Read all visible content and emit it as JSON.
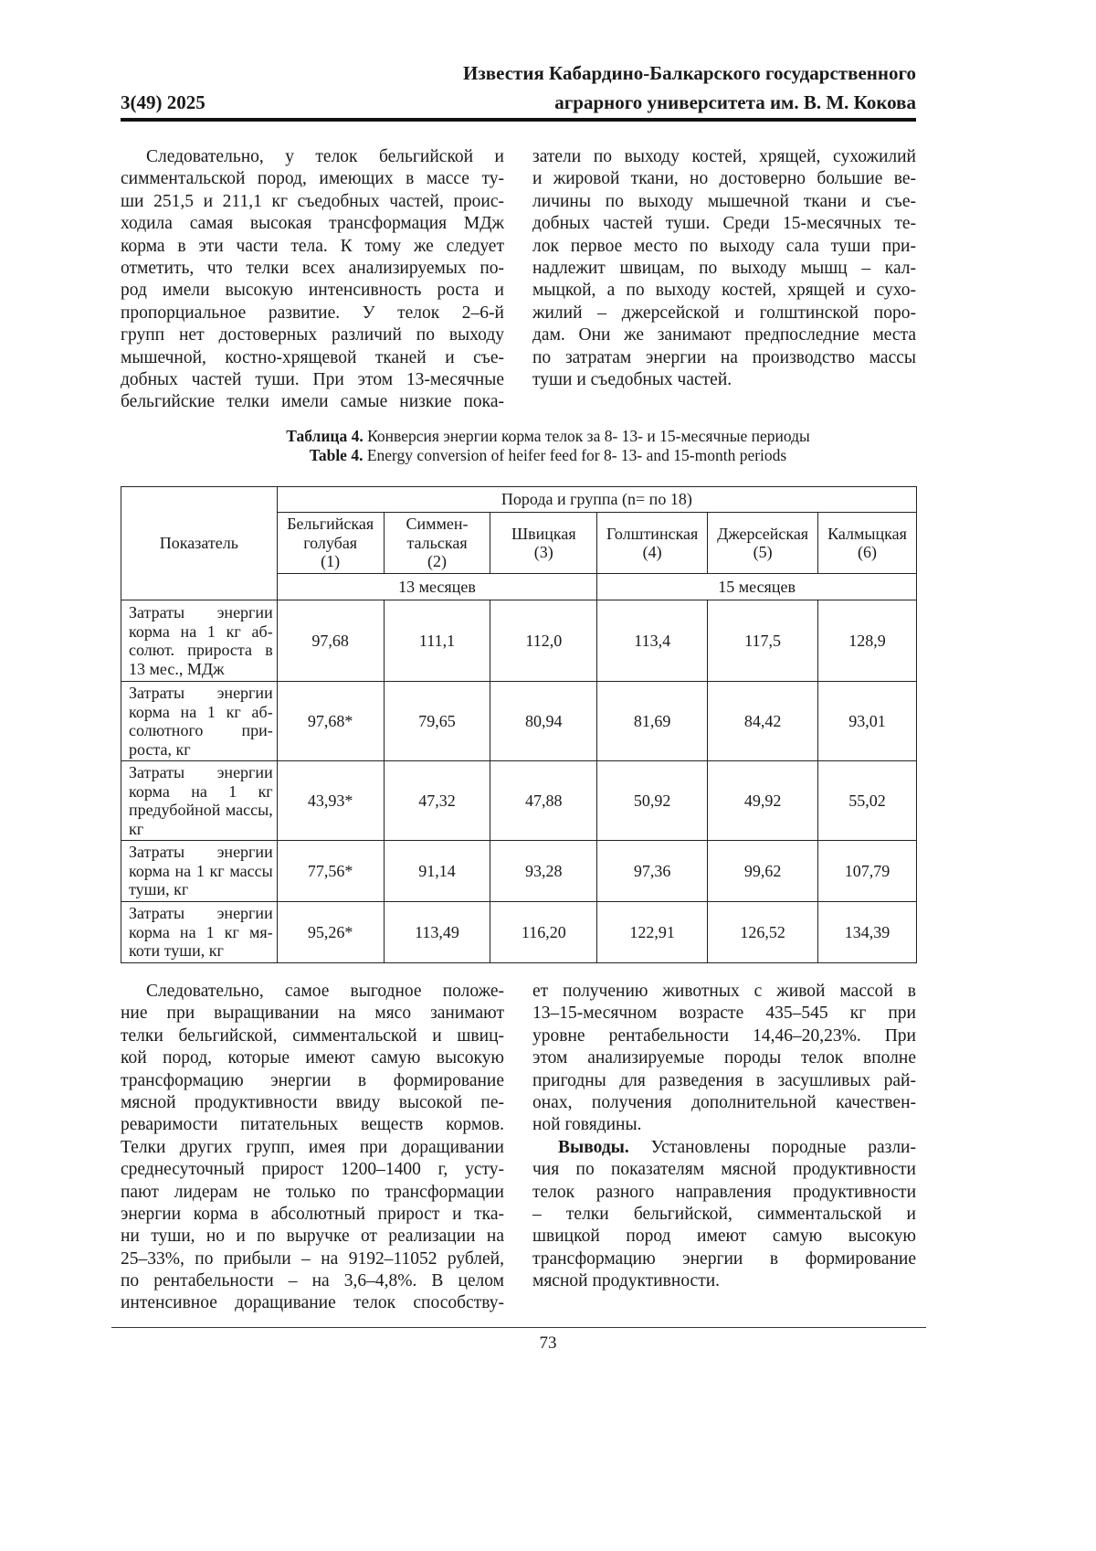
{
  "header": {
    "journal_line1": "Известия Кабардино-Балкарского государственного",
    "journal_line2": "аграрного университета им. В. М. Кокова",
    "issue": "3(49) 2025"
  },
  "top_left": [
    {
      "lines": [
        "Следовательно, у телок бельгийской и",
        "симментальской пород, имеющих в массе ту-",
        "ши 251,5 и 211,1 кг съедобных частей, проис-",
        "ходила самая высокая трансформация МДж",
        "корма в эти части тела. К тому же следует",
        "отметить, что телки всех анализируемых по-",
        "род имели высокую интенсивность роста и",
        "пропорциальное развитие. У телок 2–6-й",
        "групп нет достоверных различий по выходу",
        "мышечной, костно-хрящевой тканей и съе-",
        "добных частей туши. При этом 13-месячные",
        "бельгийские телки имели самые низкие пока-"
      ],
      "ends": false
    }
  ],
  "top_right": [
    {
      "lines": [
        "затели по выходу костей, хрящей, сухожилий",
        "и жировой ткани, но достоверно большие ве-",
        "личины по выходу мышечной ткани и съе-",
        "добных частей туши. Среди 15-месячных те-",
        "лок первое место по выходу сала туши при-",
        "надлежит швицам, по выходу мышц – кал-",
        "мыцкой, а по выходу костей, хрящей и сухо-",
        "жилий – джерсейской и голштинской поро-",
        "дам. Они же занимают предпоследние места",
        "по затратам энергии на производство массы",
        "туши и съедобных частей."
      ],
      "ends": true,
      "cont": true
    }
  ],
  "table": {
    "caption_ru_label": "Таблица 4.",
    "caption_ru": " Конверсия энергии корма телок за 8- 13- и 15-месячные периоды",
    "caption_en_label": "Table 4.",
    "caption_en": " Energy conversion of heifer feed for 8- 13- and 15-month periods",
    "indicator_header": "Показатель",
    "group_header": "Порода и группа (n= по 18)",
    "breeds": [
      [
        "Бельгийская",
        "голубая",
        "(1)"
      ],
      [
        "Симмен-",
        "тальская",
        "(2)"
      ],
      [
        "Швицкая",
        "(3)"
      ],
      [
        "Голштинская",
        "(4)"
      ],
      [
        "Джерсейская",
        "(5)"
      ],
      [
        "Калмыцкая",
        "(6)"
      ]
    ],
    "period_13": "13 месяцев",
    "period_15": "15 месяцев",
    "rows": [
      {
        "label": "Затраты энергии корма на 1 кг аб-солют. прироста в 13 мес., МДж",
        "values": [
          "97,68",
          "111,1",
          "112,0",
          "113,4",
          "117,5",
          "128,9"
        ]
      },
      {
        "label": "Затраты энергии корма на 1 кг аб-солютного при-роста, кг",
        "values": [
          "97,68*",
          "79,65",
          "80,94",
          "81,69",
          "84,42",
          "93,01"
        ]
      },
      {
        "label": "Затраты энергии корма на 1 кг предубойной массы, кг",
        "values": [
          "43,93*",
          "47,32",
          "47,88",
          "50,92",
          "49,92",
          "55,02"
        ]
      },
      {
        "label": "Затраты энергии корма на 1 кг массы туши, кг",
        "values": [
          "77,56*",
          "91,14",
          "93,28",
          "97,36",
          "99,62",
          "107,79"
        ]
      },
      {
        "label": "Затраты энергии корма на 1 кг мя-коти туши, кг",
        "values": [
          "95,26*",
          "113,49",
          "116,20",
          "122,91",
          "126,52",
          "134,39"
        ]
      }
    ]
  },
  "bottom_left": [
    {
      "lines": [
        "Следовательно, самое выгодное положе-",
        "ние при выращивании на мясо занимают",
        "телки бельгийской, симментальской и швиц-",
        "кой пород, которые имеют самую высокую",
        "трансформацию энергии в формирование",
        "мясной продуктивности ввиду высокой пе-",
        "реваримости питательных веществ кормов.",
        "Телки других групп, имея при доращивании",
        "среднесуточный прирост 1200–1400 г, усту-",
        "пают лидерам не только по трансформации",
        "энергии корма в абсолютный прирост и тка-",
        "ни туши, но и по выручке от реализации на",
        "25–33%, по прибыли – на 9192–11052 рублей,",
        "по рентабельности – на 3,6–4,8%. В целом",
        "интенсивное доращивание телок способству-"
      ],
      "ends": false
    }
  ],
  "bottom_right": [
    {
      "lines": [
        "ет получению животных с живой массой в",
        "13–15-месячном возрасте 435–545 кг при",
        "уровне рентабельности 14,46–20,23%. При",
        "этом анализируемые породы телок вполне",
        "пригодны для разведения в засушливых рай-",
        "онах, получения дополнительной качествен-",
        "ной говядины."
      ],
      "ends": true,
      "cont": true
    },
    {
      "bold_lead": "Выводы.",
      "lines": [
        " Установлены породные разли-",
        "чия по показателям мясной продуктивности",
        "телок разного направления продуктивности",
        "– телки бельгийской, симментальской и",
        "швицкой пород имеют самую высокую",
        "трансформацию энергии в формирование",
        "мясной продуктивности."
      ],
      "ends": true
    }
  ],
  "page_number": "73"
}
